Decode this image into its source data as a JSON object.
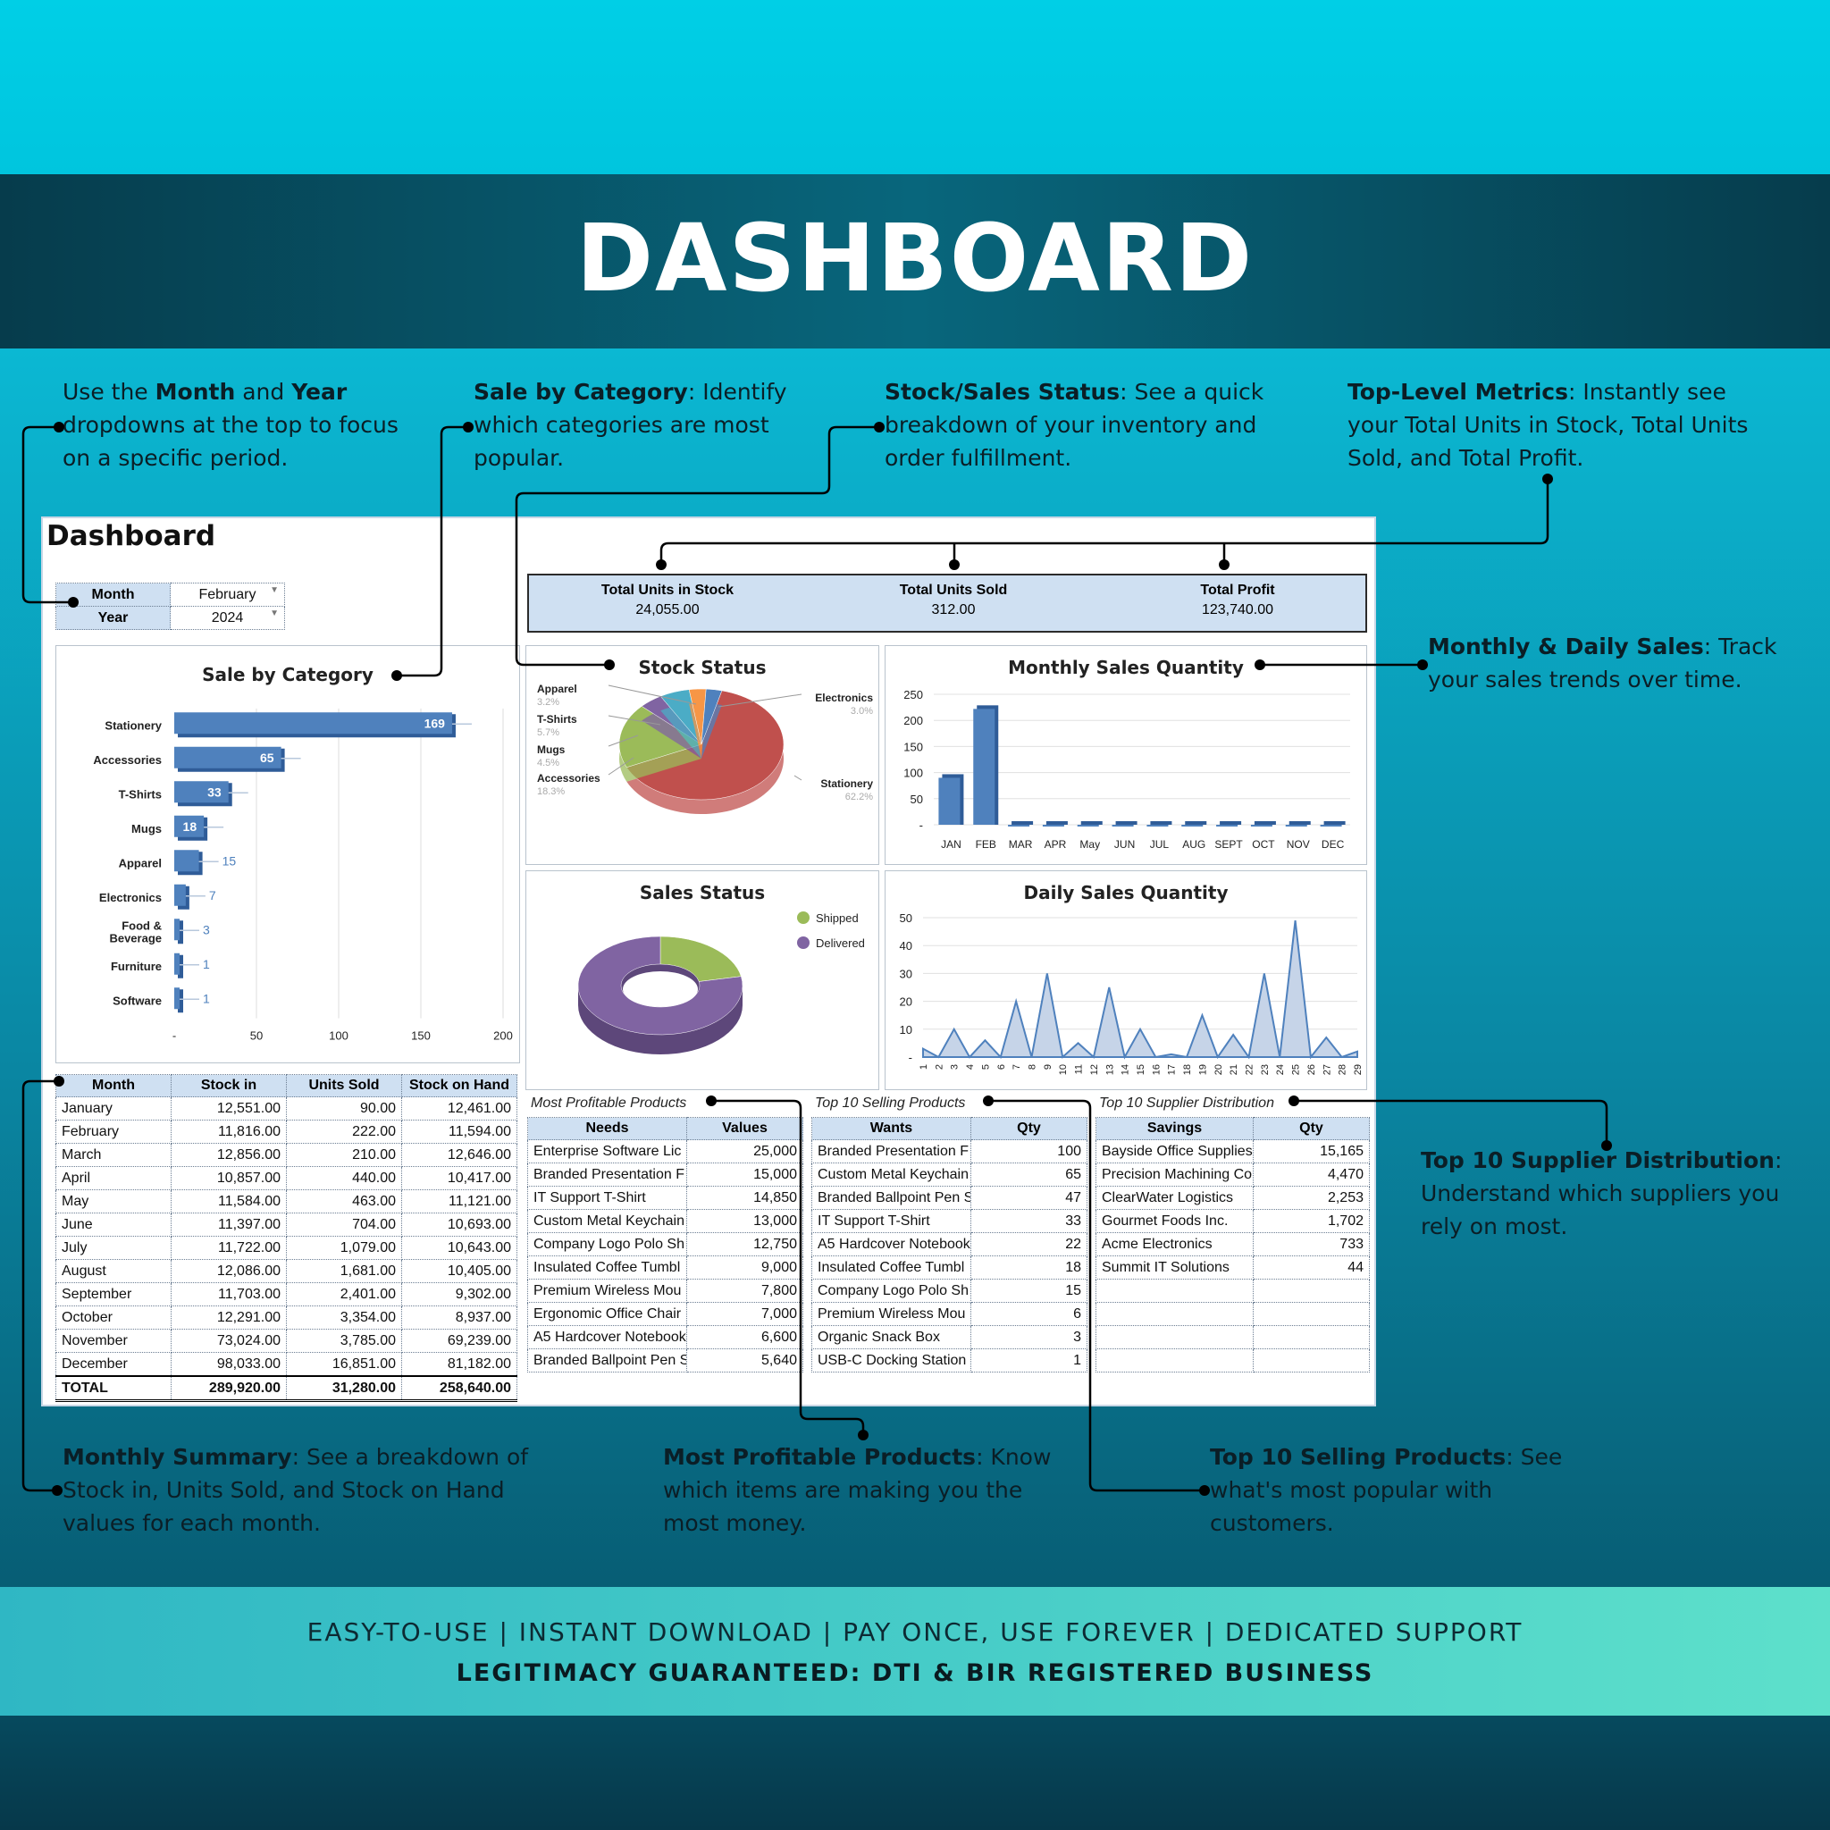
{
  "header": {
    "title": "DASHBOARD"
  },
  "notes": {
    "month_year": {
      "pre": "Use the ",
      "b1": "Month",
      "mid": " and ",
      "b2": "Year",
      "post": " dropdowns at the top to focus on a specific period."
    },
    "sale_cat": {
      "b": "Sale by Category",
      "post": ": Identify which categories are most popular."
    },
    "stock_sales": {
      "b": "Stock/Sales Status",
      "post": ": See a quick breakdown of your inventory and order fulfillment."
    },
    "top_level": {
      "b": "Top-Level Metrics",
      "post": ": Instantly see your Total Units in Stock, Total Units Sold, and Total Profit."
    },
    "monthly_daily": {
      "b": "Monthly & Daily Sales",
      "post": ": Track your sales trends over time."
    },
    "supplier": {
      "b": "Top 10 Supplier Distribution",
      "post": ": Understand which suppliers you rely on most."
    },
    "summary": {
      "b": "Monthly Summary",
      "post": ": See a breakdown of Stock in, Units Sold, and Stock on Hand values for each month."
    },
    "profitable": {
      "b": "Most Profitable Products",
      "post": ": Know which items are making you the most money."
    },
    "selling": {
      "b": "Top 10 Selling Products",
      "post": ": See what's most popular with customers."
    }
  },
  "sheet": {
    "title": "Dashboard",
    "filters": {
      "month_label": "Month",
      "month_value": "February",
      "year_label": "Year",
      "year_value": "2024"
    },
    "metrics": [
      {
        "label": "Total Units in Stock",
        "value": "24,055.00"
      },
      {
        "label": "Total Units Sold",
        "value": "312.00"
      },
      {
        "label": "Total Profit",
        "value": "123,740.00"
      }
    ]
  },
  "chart_data": [
    {
      "type": "bar",
      "title": "Sale by Category",
      "orientation": "horizontal",
      "categories": [
        "Stationery",
        "Accessories",
        "T-Shirts",
        "Mugs",
        "Apparel",
        "Electronics",
        "Food & Beverage",
        "Furniture",
        "Software"
      ],
      "values": [
        169,
        65,
        33,
        18,
        15,
        7,
        3,
        1,
        1
      ],
      "xlim": [
        0,
        200
      ],
      "xticks": [
        "-",
        "50",
        "100",
        "150",
        "200"
      ]
    },
    {
      "type": "pie",
      "title": "Stock Status",
      "labels": [
        "Stationery",
        "Accessories",
        "Mugs",
        "T-Shirts",
        "Apparel",
        "Electronics"
      ],
      "values": [
        62.2,
        18.3,
        4.5,
        5.7,
        3.2,
        3.0
      ],
      "pct_labels": [
        "62.2%",
        "18.3%",
        "4.5%",
        "5.7%",
        "3.2%",
        "3.0%"
      ],
      "colors": [
        "#c0504d",
        "#9bbb59",
        "#8064a2",
        "#4bacc6",
        "#f79646",
        "#4f81bd"
      ]
    },
    {
      "type": "bar",
      "title": "Monthly Sales Quantity",
      "categories": [
        "JAN",
        "FEB",
        "MAR",
        "APR",
        "May",
        "JUN",
        "JUL",
        "AUG",
        "SEPT",
        "OCT",
        "NOV",
        "DEC"
      ],
      "values": [
        90,
        222,
        0,
        0,
        0,
        0,
        0,
        0,
        0,
        0,
        0,
        0
      ],
      "ylim": [
        0,
        250
      ],
      "yticks": [
        "-",
        "50",
        "100",
        "150",
        "200",
        "250"
      ]
    },
    {
      "type": "pie",
      "title": "Sales Status",
      "donut": true,
      "labels": [
        "Shipped",
        "Delivered"
      ],
      "values": [
        22,
        78
      ],
      "colors": [
        "#9bbb59",
        "#8064a2"
      ],
      "legend": "right"
    },
    {
      "type": "area",
      "title": "Daily Sales Quantity",
      "x": [
        "1",
        "2",
        "3",
        "4",
        "5",
        "6",
        "7",
        "8",
        "9",
        "10",
        "11",
        "12",
        "13",
        "14",
        "15",
        "16",
        "17",
        "18",
        "19",
        "20",
        "21",
        "22",
        "23",
        "24",
        "25",
        "26",
        "27",
        "28",
        "29"
      ],
      "values": [
        3,
        0,
        10,
        0,
        6,
        0,
        20,
        0,
        30,
        0,
        5,
        0,
        25,
        0,
        10,
        0,
        1,
        0,
        15,
        0,
        8,
        0,
        30,
        0,
        49,
        0,
        7,
        0,
        2
      ],
      "ylim": [
        0,
        50
      ],
      "yticks": [
        "-",
        "10",
        "20",
        "30",
        "40",
        "50"
      ]
    }
  ],
  "monthly_table": {
    "headers": [
      "Month",
      "Stock in",
      "Units Sold",
      "Stock on Hand"
    ],
    "rows": [
      [
        "January",
        "12,551.00",
        "90.00",
        "12,461.00"
      ],
      [
        "February",
        "11,816.00",
        "222.00",
        "11,594.00"
      ],
      [
        "March",
        "12,856.00",
        "210.00",
        "12,646.00"
      ],
      [
        "April",
        "10,857.00",
        "440.00",
        "10,417.00"
      ],
      [
        "May",
        "11,584.00",
        "463.00",
        "11,121.00"
      ],
      [
        "June",
        "11,397.00",
        "704.00",
        "10,693.00"
      ],
      [
        "July",
        "11,722.00",
        "1,079.00",
        "10,643.00"
      ],
      [
        "August",
        "12,086.00",
        "1,681.00",
        "10,405.00"
      ],
      [
        "September",
        "11,703.00",
        "2,401.00",
        "9,302.00"
      ],
      [
        "October",
        "12,291.00",
        "3,354.00",
        "8,937.00"
      ],
      [
        "November",
        "73,024.00",
        "3,785.00",
        "69,239.00"
      ],
      [
        "December",
        "98,033.00",
        "16,851.00",
        "81,182.00"
      ]
    ],
    "total": [
      "TOTAL",
      "289,920.00",
      "31,280.00",
      "258,640.00"
    ]
  },
  "profit_table": {
    "caption": "Most Profitable Products",
    "headers": [
      "Needs",
      "Values"
    ],
    "rows": [
      [
        "Enterprise Software Lic",
        "25,000"
      ],
      [
        "Branded Presentation F",
        "15,000"
      ],
      [
        "IT Support T-Shirt",
        "14,850"
      ],
      [
        "Custom Metal Keychain",
        "13,000"
      ],
      [
        "Company Logo Polo Sh",
        "12,750"
      ],
      [
        "Insulated Coffee Tumbl",
        "9,000"
      ],
      [
        "Premium Wireless Mou",
        "7,800"
      ],
      [
        "Ergonomic Office Chair",
        "7,000"
      ],
      [
        "A5 Hardcover Notebook",
        "6,600"
      ],
      [
        "Branded Ballpoint Pen S",
        "5,640"
      ]
    ]
  },
  "selling_table": {
    "caption": "Top 10 Selling Products",
    "headers": [
      "Wants",
      "Qty"
    ],
    "rows": [
      [
        "Branded Presentation F",
        "100"
      ],
      [
        "Custom Metal Keychain",
        "65"
      ],
      [
        "Branded Ballpoint Pen S",
        "47"
      ],
      [
        "IT Support T-Shirt",
        "33"
      ],
      [
        "A5 Hardcover Notebook",
        "22"
      ],
      [
        "Insulated Coffee Tumbl",
        "18"
      ],
      [
        "Company Logo Polo Sh",
        "15"
      ],
      [
        "Premium Wireless Mou",
        "6"
      ],
      [
        "Organic Snack Box",
        "3"
      ],
      [
        "USB-C Docking Station",
        "1"
      ]
    ]
  },
  "supplier_table": {
    "caption": "Top 10 Supplier Distribution",
    "headers": [
      "Savings",
      "Qty"
    ],
    "rows": [
      [
        "Bayside Office Supplies",
        "15,165"
      ],
      [
        "Precision Machining Co",
        "4,470"
      ],
      [
        "ClearWater Logistics",
        "2,253"
      ],
      [
        "Gourmet Foods Inc.",
        "1,702"
      ],
      [
        "Acme Electronics",
        "733"
      ],
      [
        "Summit IT Solutions",
        "44"
      ],
      [
        "",
        ""
      ],
      [
        "",
        ""
      ],
      [
        "",
        ""
      ],
      [
        "",
        ""
      ]
    ]
  },
  "footer": {
    "line1": "EASY-TO-USE | INSTANT DOWNLOAD | PAY ONCE, USE FOREVER | DEDICATED SUPPORT",
    "line2": "LEGITIMACY GUARANTEED: DTI & BIR REGISTERED BUSINESS"
  }
}
